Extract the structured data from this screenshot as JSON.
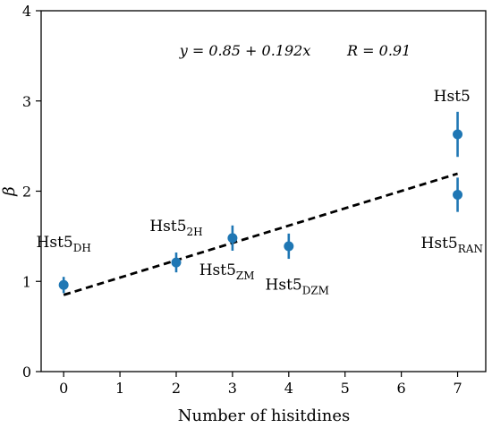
{
  "chart_data": {
    "type": "scatter",
    "xlabel": "Number of hisitdines",
    "ylabel": "β",
    "xlim": [
      -0.4,
      7.5
    ],
    "ylim": [
      0,
      4
    ],
    "xticks": [
      "0",
      "1",
      "2",
      "3",
      "4",
      "5",
      "6",
      "7"
    ],
    "yticks": [
      "0",
      "1",
      "2",
      "3",
      "4"
    ],
    "grid": false,
    "annotation": "y = 0.85 + 0.192x        R = 0.91",
    "fit": {
      "intercept": 0.85,
      "slope": 0.192,
      "x_range": [
        0,
        7
      ]
    },
    "marker_color": "#1f77b4",
    "points": [
      {
        "x": 0,
        "y": 0.96,
        "err": 0.09,
        "label_base": "Hst5",
        "label_sub": "DH",
        "label_pos": [
          0,
          1.38
        ]
      },
      {
        "x": 2,
        "y": 1.21,
        "err": 0.11,
        "label_base": "Hst5",
        "label_sub": "2H",
        "label_pos": [
          2,
          1.56
        ]
      },
      {
        "x": 3,
        "y": 1.48,
        "err": 0.14,
        "label_base": "Hst5",
        "label_sub": "ZM",
        "label_pos": [
          2.9,
          1.07
        ]
      },
      {
        "x": 4,
        "y": 1.39,
        "err": 0.14,
        "label_base": "Hst5",
        "label_sub": "DZM",
        "label_pos": [
          4.15,
          0.91
        ]
      },
      {
        "x": 7,
        "y": 2.63,
        "err": 0.25,
        "label_base": "Hst5",
        "label_sub": "",
        "label_pos": [
          6.9,
          3.0
        ]
      },
      {
        "x": 7,
        "y": 1.96,
        "err": 0.19,
        "label_base": "Hst5",
        "label_sub": "RAN",
        "label_pos": [
          6.9,
          1.37
        ]
      }
    ]
  }
}
